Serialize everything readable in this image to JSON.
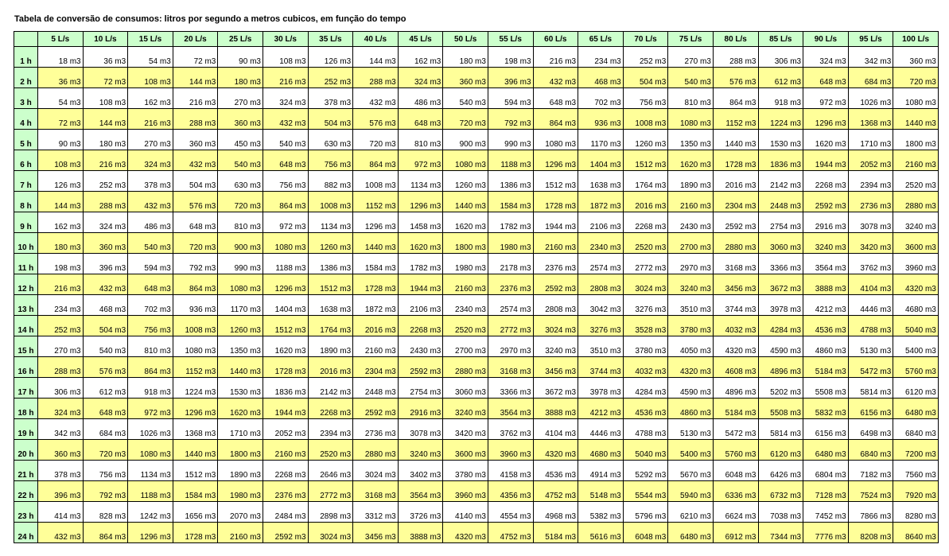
{
  "title": "Tabela de conversão de consumos: litros por segundo a metros cubicos, em função do tempo",
  "unit_suffix": " m3",
  "flow_rates": [
    "5 L/s",
    "10 L/s",
    "15 L/s",
    "20 L/s",
    "25 L/s",
    "30 L/s",
    "35 L/s",
    "40 L/s",
    "45 L/s",
    "50 L/s",
    "55 L/s",
    "60 L/s",
    "65 L/s",
    "70 L/s",
    "75 L/s",
    "80 L/s",
    "85 L/s",
    "90 L/s",
    "95 L/s",
    "100 L/s"
  ],
  "rows": [
    {
      "hour": "1 h",
      "values": [
        18,
        36,
        54,
        72,
        90,
        108,
        126,
        144,
        162,
        180,
        198,
        216,
        234,
        252,
        270,
        288,
        306,
        324,
        342,
        360
      ]
    },
    {
      "hour": "2 h",
      "values": [
        36,
        72,
        108,
        144,
        180,
        216,
        252,
        288,
        324,
        360,
        396,
        432,
        468,
        504,
        540,
        576,
        612,
        648,
        684,
        720
      ]
    },
    {
      "hour": "3 h",
      "values": [
        54,
        108,
        162,
        216,
        270,
        324,
        378,
        432,
        486,
        540,
        594,
        648,
        702,
        756,
        810,
        864,
        918,
        972,
        1026,
        1080
      ]
    },
    {
      "hour": "4 h",
      "values": [
        72,
        144,
        216,
        288,
        360,
        432,
        504,
        576,
        648,
        720,
        792,
        864,
        936,
        1008,
        1080,
        1152,
        1224,
        1296,
        1368,
        1440
      ]
    },
    {
      "hour": "5 h",
      "values": [
        90,
        180,
        270,
        360,
        450,
        540,
        630,
        720,
        810,
        900,
        990,
        1080,
        1170,
        1260,
        1350,
        1440,
        1530,
        1620,
        1710,
        1800
      ]
    },
    {
      "hour": "6 h",
      "values": [
        108,
        216,
        324,
        432,
        540,
        648,
        756,
        864,
        972,
        1080,
        1188,
        1296,
        1404,
        1512,
        1620,
        1728,
        1836,
        1944,
        2052,
        2160
      ]
    },
    {
      "hour": "7 h",
      "values": [
        126,
        252,
        378,
        504,
        630,
        756,
        882,
        1008,
        1134,
        1260,
        1386,
        1512,
        1638,
        1764,
        1890,
        2016,
        2142,
        2268,
        2394,
        2520
      ]
    },
    {
      "hour": "8 h",
      "values": [
        144,
        288,
        432,
        576,
        720,
        864,
        1008,
        1152,
        1296,
        1440,
        1584,
        1728,
        1872,
        2016,
        2160,
        2304,
        2448,
        2592,
        2736,
        2880
      ]
    },
    {
      "hour": "9 h",
      "values": [
        162,
        324,
        486,
        648,
        810,
        972,
        1134,
        1296,
        1458,
        1620,
        1782,
        1944,
        2106,
        2268,
        2430,
        2592,
        2754,
        2916,
        3078,
        3240
      ]
    },
    {
      "hour": "10 h",
      "values": [
        180,
        360,
        540,
        720,
        900,
        1080,
        1260,
        1440,
        1620,
        1800,
        1980,
        2160,
        2340,
        2520,
        2700,
        2880,
        3060,
        3240,
        3420,
        3600
      ]
    },
    {
      "hour": "11 h",
      "values": [
        198,
        396,
        594,
        792,
        990,
        1188,
        1386,
        1584,
        1782,
        1980,
        2178,
        2376,
        2574,
        2772,
        2970,
        3168,
        3366,
        3564,
        3762,
        3960
      ]
    },
    {
      "hour": "12 h",
      "values": [
        216,
        432,
        648,
        864,
        1080,
        1296,
        1512,
        1728,
        1944,
        2160,
        2376,
        2592,
        2808,
        3024,
        3240,
        3456,
        3672,
        3888,
        4104,
        4320
      ]
    },
    {
      "hour": "13 h",
      "values": [
        234,
        468,
        702,
        936,
        1170,
        1404,
        1638,
        1872,
        2106,
        2340,
        2574,
        2808,
        3042,
        3276,
        3510,
        3744,
        3978,
        4212,
        4446,
        4680
      ]
    },
    {
      "hour": "14 h",
      "values": [
        252,
        504,
        756,
        1008,
        1260,
        1512,
        1764,
        2016,
        2268,
        2520,
        2772,
        3024,
        3276,
        3528,
        3780,
        4032,
        4284,
        4536,
        4788,
        5040
      ]
    },
    {
      "hour": "15 h",
      "values": [
        270,
        540,
        810,
        1080,
        1350,
        1620,
        1890,
        2160,
        2430,
        2700,
        2970,
        3240,
        3510,
        3780,
        4050,
        4320,
        4590,
        4860,
        5130,
        5400
      ]
    },
    {
      "hour": "16 h",
      "values": [
        288,
        576,
        864,
        1152,
        1440,
        1728,
        2016,
        2304,
        2592,
        2880,
        3168,
        3456,
        3744,
        4032,
        4320,
        4608,
        4896,
        5184,
        5472,
        5760
      ]
    },
    {
      "hour": "17 h",
      "values": [
        306,
        612,
        918,
        1224,
        1530,
        1836,
        2142,
        2448,
        2754,
        3060,
        3366,
        3672,
        3978,
        4284,
        4590,
        4896,
        5202,
        5508,
        5814,
        6120
      ]
    },
    {
      "hour": "18 h",
      "values": [
        324,
        648,
        972,
        1296,
        1620,
        1944,
        2268,
        2592,
        2916,
        3240,
        3564,
        3888,
        4212,
        4536,
        4860,
        5184,
        5508,
        5832,
        6156,
        6480
      ]
    },
    {
      "hour": "19 h",
      "values": [
        342,
        684,
        1026,
        1368,
        1710,
        2052,
        2394,
        2736,
        3078,
        3420,
        3762,
        4104,
        4446,
        4788,
        5130,
        5472,
        5814,
        6156,
        6498,
        6840
      ]
    },
    {
      "hour": "20 h",
      "values": [
        360,
        720,
        1080,
        1440,
        1800,
        2160,
        2520,
        2880,
        3240,
        3600,
        3960,
        4320,
        4680,
        5040,
        5400,
        5760,
        6120,
        6480,
        6840,
        7200
      ]
    },
    {
      "hour": "21 h",
      "values": [
        378,
        756,
        1134,
        1512,
        1890,
        2268,
        2646,
        3024,
        3402,
        3780,
        4158,
        4536,
        4914,
        5292,
        5670,
        6048,
        6426,
        6804,
        7182,
        7560
      ]
    },
    {
      "hour": "22 h",
      "values": [
        396,
        792,
        1188,
        1584,
        1980,
        2376,
        2772,
        3168,
        3564,
        3960,
        4356,
        4752,
        5148,
        5544,
        5940,
        6336,
        6732,
        7128,
        7524,
        7920
      ]
    },
    {
      "hour": "23 h",
      "values": [
        414,
        828,
        1242,
        1656,
        2070,
        2484,
        2898,
        3312,
        3726,
        4140,
        4554,
        4968,
        5382,
        5796,
        6210,
        6624,
        7038,
        7452,
        7866,
        8280
      ]
    },
    {
      "hour": "24 h",
      "values": [
        432,
        864,
        1296,
        1728,
        2160,
        2592,
        3024,
        3456,
        3888,
        4320,
        4752,
        5184,
        5616,
        6048,
        6480,
        6912,
        7344,
        7776,
        8208,
        8640
      ]
    }
  ],
  "colors": {
    "header_bg": "#ccffcc",
    "odd_row_bg": "#ffffff",
    "even_row_bg": "#ffff99",
    "border": "#000000"
  }
}
